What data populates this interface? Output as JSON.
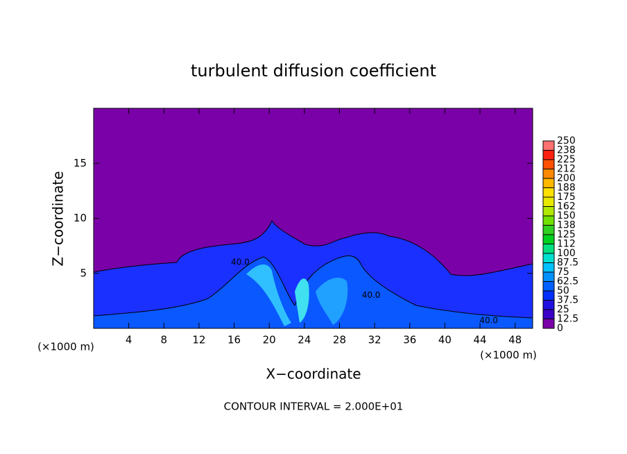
{
  "chart_data": {
    "type": "contour",
    "title": "turbulent diffusion coefficient",
    "xlabel": "X−coordinate",
    "ylabel": "Z−coordinate",
    "x_unit_labels": [
      "(×1000 m)",
      "(×1000 m)"
    ],
    "footnote": "CONTOUR INTERVAL = 2.000E+01",
    "xlim": [
      0,
      50
    ],
    "xticks": [
      4,
      8,
      12,
      16,
      20,
      24,
      28,
      32,
      36,
      40,
      44,
      48
    ],
    "ylim": [
      0,
      20
    ],
    "yticks": [
      5,
      10,
      15
    ],
    "colorbar_lim": [
      0,
      250
    ],
    "colorbar_ticks": [
      0,
      12.5,
      25,
      37.5,
      50,
      62.5,
      75,
      87.5,
      100,
      {
        "value": 112.5,
        "label": "112"
      },
      125,
      {
        "value": 137.5,
        "label": "138"
      },
      150,
      {
        "value": 162.5,
        "label": "162"
      },
      175,
      {
        "value": 187.5,
        "label": "188"
      },
      200,
      {
        "value": 212.5,
        "label": "212"
      },
      225,
      {
        "value": 237.5,
        "label": "238"
      },
      250
    ],
    "colors": [
      "#7a00a8",
      "#3a00c8",
      "#2010e0",
      "#0030ff",
      "#0060ff",
      "#0090ff",
      "#00c0ff",
      "#00e0d0",
      "#00e080",
      "#00d020",
      "#30d020",
      "#70e000",
      "#b0e800",
      "#e8e800",
      "#ffe000",
      "#ffb800",
      "#ff8800",
      "#ff5000",
      "#ff2010",
      "#ff7070"
    ],
    "annotations": [
      {
        "text": "40.0",
        "x": 16.7,
        "y": 6.0
      },
      {
        "text": "40.0",
        "x": 31.6,
        "y": 3.0
      },
      {
        "text": "40.0",
        "x": 45.0,
        "y": 0.7
      }
    ]
  }
}
